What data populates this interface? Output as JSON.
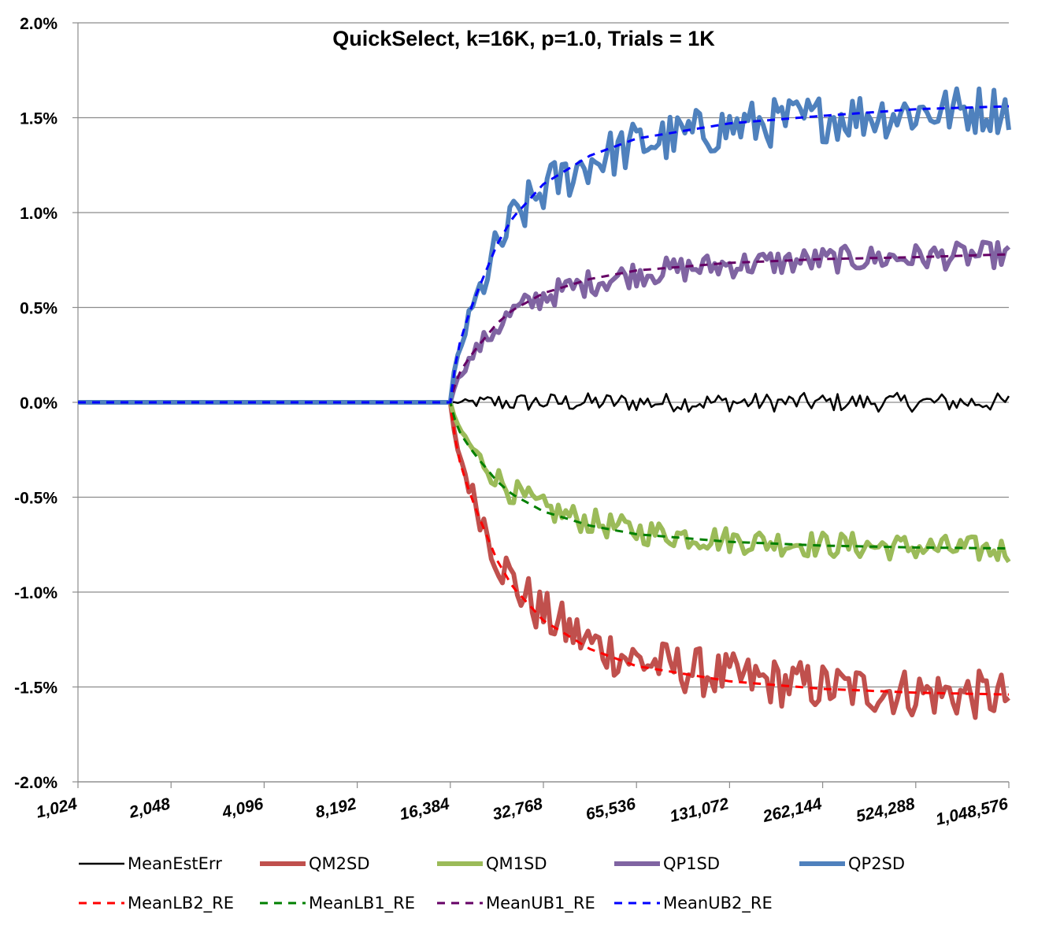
{
  "chart_data": {
    "type": "line",
    "title": "QuickSelect, k=16K, p=1.0, Trials = 1K",
    "xlabel": "",
    "ylabel": "",
    "x_scale": "log2",
    "x_ticks": [
      "1,024",
      "2,048",
      "4,096",
      "8,192",
      "16,384",
      "32,768",
      "65,536",
      "131,072",
      "262,144",
      "524,288",
      "1,048,576"
    ],
    "xlim": [
      1024,
      1048576
    ],
    "y_ticks": [
      "2.0%",
      "1.5%",
      "1.0%",
      "0.5%",
      "0.0%",
      "-0.5%",
      "-1.0%",
      "-1.5%",
      "-2.0%"
    ],
    "ylim": [
      -2.0,
      2.0
    ],
    "y_unit": "%",
    "grid": "horizontal",
    "legend_position": "bottom",
    "series": [
      {
        "name": "MeanEstErr",
        "color": "#000000",
        "width": 2.5,
        "dash": "none",
        "noise": 0.05,
        "points": [
          [
            1024,
            0
          ],
          [
            16384,
            0
          ],
          [
            1048576,
            0
          ]
        ]
      },
      {
        "name": "QM2SD",
        "color": "#c0504d",
        "width": 6,
        "dash": "none",
        "noise": 0.13,
        "points": [
          [
            1024,
            0
          ],
          [
            16384,
            0
          ],
          [
            17000,
            -0.2
          ],
          [
            18500,
            -0.4
          ],
          [
            20000,
            -0.55
          ],
          [
            23170,
            -0.8
          ],
          [
            26000,
            -0.95
          ],
          [
            32768,
            -1.12
          ],
          [
            46341,
            -1.27
          ],
          [
            65536,
            -1.36
          ],
          [
            131072,
            -1.45
          ],
          [
            262144,
            -1.5
          ],
          [
            524288,
            -1.53
          ],
          [
            1048576,
            -1.55
          ]
        ]
      },
      {
        "name": "QM1SD",
        "color": "#9bbb59",
        "width": 6,
        "dash": "none",
        "noise": 0.07,
        "points": [
          [
            1024,
            0
          ],
          [
            16384,
            0
          ],
          [
            17000,
            -0.1
          ],
          [
            18500,
            -0.2
          ],
          [
            20000,
            -0.28
          ],
          [
            23170,
            -0.4
          ],
          [
            26000,
            -0.47
          ],
          [
            32768,
            -0.56
          ],
          [
            46341,
            -0.63
          ],
          [
            65536,
            -0.68
          ],
          [
            131072,
            -0.725
          ],
          [
            262144,
            -0.75
          ],
          [
            524288,
            -0.765
          ],
          [
            1048576,
            -0.78
          ]
        ]
      },
      {
        "name": "QP1SD",
        "color": "#8064a2",
        "width": 6,
        "dash": "none",
        "noise": 0.07,
        "points": [
          [
            1024,
            0
          ],
          [
            16384,
            0
          ],
          [
            17000,
            0.1
          ],
          [
            18500,
            0.2
          ],
          [
            20000,
            0.28
          ],
          [
            23170,
            0.4
          ],
          [
            26000,
            0.47
          ],
          [
            32768,
            0.56
          ],
          [
            46341,
            0.63
          ],
          [
            65536,
            0.68
          ],
          [
            131072,
            0.725
          ],
          [
            262144,
            0.75
          ],
          [
            524288,
            0.765
          ],
          [
            1048576,
            0.78
          ]
        ]
      },
      {
        "name": "QP2SD",
        "color": "#4f81bd",
        "width": 6,
        "dash": "none",
        "noise": 0.13,
        "points": [
          [
            1024,
            0
          ],
          [
            16384,
            0
          ],
          [
            17000,
            0.2
          ],
          [
            18500,
            0.4
          ],
          [
            20000,
            0.55
          ],
          [
            23170,
            0.8
          ],
          [
            26000,
            0.95
          ],
          [
            32768,
            1.12
          ],
          [
            46341,
            1.27
          ],
          [
            65536,
            1.36
          ],
          [
            131072,
            1.45
          ],
          [
            262144,
            1.5
          ],
          [
            524288,
            1.53
          ],
          [
            1048576,
            1.55
          ]
        ]
      },
      {
        "name": "MeanLB2_RE",
        "color": "#ff0000",
        "width": 3,
        "dash": "10,8",
        "noise": 0,
        "points": [
          [
            1024,
            0
          ],
          [
            16384,
            0
          ],
          [
            16800,
            -0.15
          ],
          [
            17500,
            -0.3
          ],
          [
            18500,
            -0.43
          ],
          [
            20000,
            -0.58
          ],
          [
            23170,
            -0.83
          ],
          [
            26000,
            -0.97
          ],
          [
            32768,
            -1.15
          ],
          [
            46341,
            -1.3
          ],
          [
            65536,
            -1.39
          ],
          [
            131072,
            -1.47
          ],
          [
            262144,
            -1.51
          ],
          [
            524288,
            -1.53
          ],
          [
            1048576,
            -1.54
          ]
        ]
      },
      {
        "name": "MeanLB1_RE",
        "color": "#008000",
        "width": 3,
        "dash": "10,8",
        "noise": 0,
        "points": [
          [
            1024,
            0
          ],
          [
            16384,
            0
          ],
          [
            16800,
            -0.075
          ],
          [
            17500,
            -0.15
          ],
          [
            18500,
            -0.215
          ],
          [
            20000,
            -0.29
          ],
          [
            23170,
            -0.415
          ],
          [
            26000,
            -0.485
          ],
          [
            32768,
            -0.575
          ],
          [
            46341,
            -0.65
          ],
          [
            65536,
            -0.695
          ],
          [
            131072,
            -0.735
          ],
          [
            262144,
            -0.755
          ],
          [
            524288,
            -0.765
          ],
          [
            1048576,
            -0.77
          ]
        ]
      },
      {
        "name": "MeanUB1_RE",
        "color": "#660066",
        "width": 3,
        "dash": "10,8",
        "noise": 0,
        "points": [
          [
            1024,
            0
          ],
          [
            16384,
            0
          ],
          [
            16800,
            0.075
          ],
          [
            17500,
            0.15
          ],
          [
            18500,
            0.215
          ],
          [
            20000,
            0.29
          ],
          [
            23170,
            0.415
          ],
          [
            26000,
            0.485
          ],
          [
            32768,
            0.575
          ],
          [
            46341,
            0.65
          ],
          [
            65536,
            0.695
          ],
          [
            131072,
            0.735
          ],
          [
            262144,
            0.755
          ],
          [
            524288,
            0.765
          ],
          [
            1048576,
            0.78
          ]
        ]
      },
      {
        "name": "MeanUB2_RE",
        "color": "#0000ff",
        "width": 3,
        "dash": "10,8",
        "noise": 0,
        "points": [
          [
            1024,
            0
          ],
          [
            16384,
            0
          ],
          [
            16800,
            0.15
          ],
          [
            17500,
            0.3
          ],
          [
            18500,
            0.43
          ],
          [
            20000,
            0.58
          ],
          [
            23170,
            0.83
          ],
          [
            26000,
            0.97
          ],
          [
            32768,
            1.15
          ],
          [
            46341,
            1.3
          ],
          [
            65536,
            1.39
          ],
          [
            131072,
            1.47
          ],
          [
            262144,
            1.51
          ],
          [
            524288,
            1.545
          ],
          [
            1048576,
            1.56
          ]
        ]
      }
    ]
  }
}
